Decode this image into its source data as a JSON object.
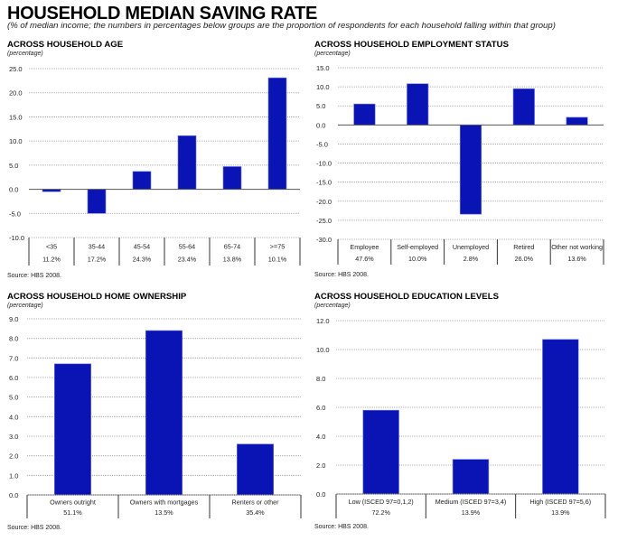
{
  "header": {
    "title": "HOUSEHOLD MEDIAN SAVING RATE",
    "subtitle": "(% of median income; the numbers in percentages below groups are the proportion of respondents for each household falling within that group)"
  },
  "colors": {
    "bar": "#0a14b4",
    "bar_edge": "#6f78e0",
    "grid": "#9a9a9a",
    "axis": "#555555",
    "text": "#222222"
  },
  "chart_data": [
    {
      "id": "age",
      "type": "bar",
      "title": "ACROSS HOUSEHOLD AGE",
      "ylabel": "(percentage)",
      "xlabel": "",
      "categories": [
        "<35",
        "35-44",
        "45-54",
        "55-64",
        "65-74",
        ">=75"
      ],
      "shares": [
        "11.2%",
        "17.2%",
        "24.3%",
        "23.4%",
        "13.8%",
        "10.1%"
      ],
      "values": [
        -0.5,
        -5.0,
        3.7,
        11.1,
        4.7,
        23.1
      ],
      "ylim": [
        -10,
        25
      ],
      "yticks": [
        -10,
        -5,
        0,
        5,
        10,
        15,
        20,
        25
      ],
      "ytick_labels": [
        "-10.0",
        "-5.0",
        "0.0",
        "5.0",
        "10.0",
        "15.0",
        "20.0",
        "25.0"
      ],
      "grid": true,
      "legend": "none",
      "source": "Source: HBS 2008."
    },
    {
      "id": "employment",
      "type": "bar",
      "title": "ACROSS HOUSEHOLD EMPLOYMENT STATUS",
      "ylabel": "(percentage)",
      "xlabel": "",
      "categories": [
        "Employee",
        "Self-employed",
        "Unemployed",
        "Retired",
        "Other not working"
      ],
      "shares": [
        "47.6%",
        "10.0%",
        "2.8%",
        "26.0%",
        "13.6%"
      ],
      "values": [
        5.5,
        10.8,
        -23.4,
        9.5,
        2.0
      ],
      "ylim": [
        -30,
        15
      ],
      "yticks": [
        -30,
        -25,
        -20,
        -15,
        -10,
        -5,
        0,
        5,
        10,
        15
      ],
      "ytick_labels": [
        "-30.0",
        "-25.0",
        "-20.0",
        "-15.0",
        "-10.0",
        "-5.0",
        "0.0",
        "5.0",
        "10.0",
        "15.0"
      ],
      "grid": true,
      "legend": "none",
      "source": "Source: HBS 2008."
    },
    {
      "id": "home",
      "type": "bar",
      "title": "ACROSS HOUSEHOLD HOME OWNERSHIP",
      "ylabel": "(percentage)",
      "xlabel": "",
      "categories": [
        "Owners outright",
        "Owners with mortgages",
        "Renters or other"
      ],
      "shares": [
        "51.1%",
        "13.5%",
        "35.4%"
      ],
      "values": [
        6.7,
        8.4,
        2.6
      ],
      "ylim": [
        0,
        9
      ],
      "yticks": [
        0,
        1,
        2,
        3,
        4,
        5,
        6,
        7,
        8,
        9
      ],
      "ytick_labels": [
        "0.0",
        "1.0",
        "2.0",
        "3.0",
        "4.0",
        "5.0",
        "6.0",
        "7.0",
        "8.0",
        "9.0"
      ],
      "grid": true,
      "legend": "none",
      "source": "Source: HBS 2008."
    },
    {
      "id": "education",
      "type": "bar",
      "title": "ACROSS HOUSEHOLD EDUCATION LEVELS",
      "ylabel": "(percentage)",
      "xlabel": "",
      "categories": [
        "Low (ISCED 97=0,1,2)",
        "Medium (ISCED 97=3,4)",
        "High (ISCED 97=5,6)"
      ],
      "shares": [
        "72.2%",
        "13.9%",
        "13.9%"
      ],
      "values": [
        5.8,
        2.4,
        10.7
      ],
      "ylim": [
        0,
        12
      ],
      "yticks": [
        0,
        2,
        4,
        6,
        8,
        10,
        12
      ],
      "ytick_labels": [
        "0.0",
        "2.0",
        "4.0",
        "6.0",
        "8.0",
        "10.0",
        "12.0"
      ],
      "grid": true,
      "legend": "none",
      "source": "Source: HBS 2008."
    }
  ]
}
